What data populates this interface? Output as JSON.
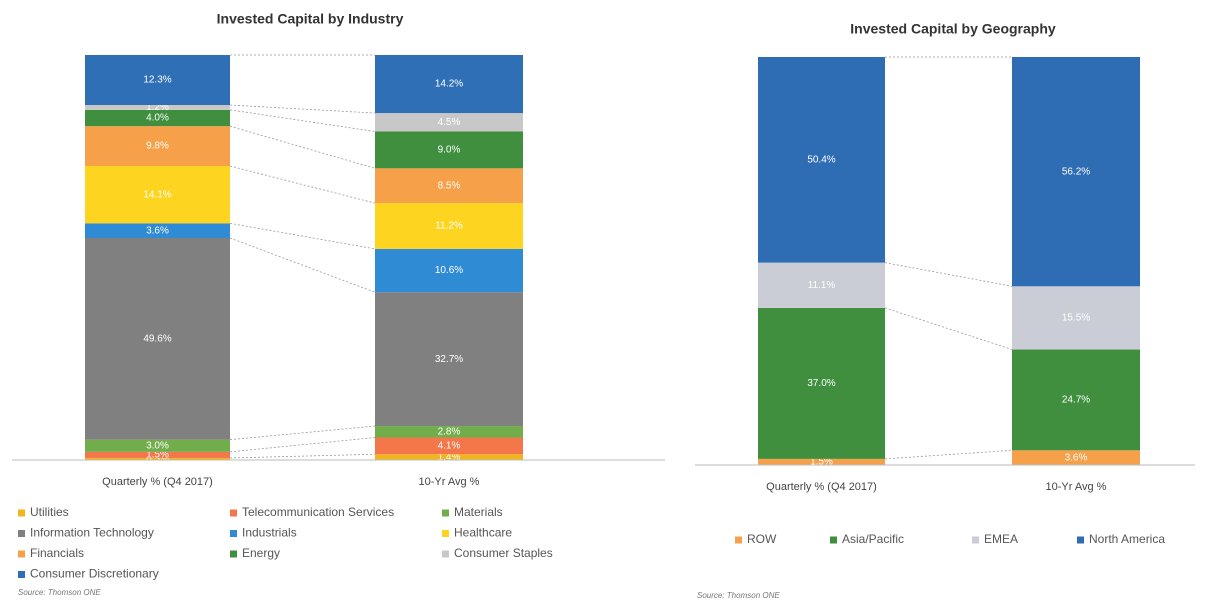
{
  "chart_data": [
    {
      "type": "bar",
      "stacked": true,
      "title": "Invested Capital by Industry",
      "categories": [
        "Quarterly % (Q4 2017)",
        "10-Yr Avg %"
      ],
      "series": [
        {
          "name": "Utilities",
          "color": "#f2b51c",
          "values": [
            0.5,
            1.4
          ],
          "value_labels": [
            "0.5%",
            "1.4%"
          ]
        },
        {
          "name": "Telecommunication Services",
          "color": "#f4774c",
          "values": [
            1.5,
            4.1
          ],
          "value_labels": [
            "1.5%",
            "4.1%"
          ]
        },
        {
          "name": "Materials",
          "color": "#72ad4c",
          "values": [
            3.0,
            2.8
          ],
          "value_labels": [
            "3.0%",
            "2.8%"
          ]
        },
        {
          "name": "Information Technology",
          "color": "#808080",
          "values": [
            49.6,
            32.7
          ],
          "value_labels": [
            "49.6%",
            "32.7%"
          ]
        },
        {
          "name": "Industrials",
          "color": "#2f8bd4",
          "values": [
            3.6,
            10.6
          ],
          "value_labels": [
            "3.6%",
            "10.6%"
          ]
        },
        {
          "name": "Healthcare",
          "color": "#fdd521",
          "values": [
            14.1,
            11.2
          ],
          "value_labels": [
            "14.1%",
            "11.2%"
          ]
        },
        {
          "name": "Financials",
          "color": "#f6a049",
          "values": [
            9.8,
            8.5
          ],
          "value_labels": [
            "9.8%",
            "8.5%"
          ]
        },
        {
          "name": "Energy",
          "color": "#3f8f3f",
          "values": [
            4.0,
            9.0
          ],
          "value_labels": [
            "4.0%",
            "9.0%"
          ]
        },
        {
          "name": "Consumer Staples",
          "color": "#c8c8c8",
          "values": [
            1.2,
            4.5
          ],
          "value_labels": [
            "1.2%",
            "4.5%"
          ]
        },
        {
          "name": "Consumer Discretionary",
          "color": "#2f6fb6",
          "values": [
            12.3,
            14.2
          ],
          "value_labels": [
            "12.3%",
            "14.2%"
          ]
        }
      ],
      "source": "Source: Thomson ONE"
    },
    {
      "type": "bar",
      "stacked": true,
      "title": "Invested Capital by Geography",
      "categories": [
        "Quarterly % (Q4 2017)",
        "10-Yr Avg %"
      ],
      "series": [
        {
          "name": "ROW",
          "color": "#f6a049",
          "values": [
            1.5,
            3.6
          ],
          "value_labels": [
            "1.5%",
            "3.6%"
          ]
        },
        {
          "name": "Asia/Pacific",
          "color": "#3f8f3f",
          "values": [
            37.0,
            24.7
          ],
          "value_labels": [
            "37.0%",
            "24.7%"
          ]
        },
        {
          "name": "EMEA",
          "color": "#cacdd6",
          "values": [
            11.1,
            15.5
          ],
          "value_labels": [
            "11.1%",
            "15.5%"
          ]
        },
        {
          "name": "North America",
          "color": "#2e6db4",
          "values": [
            50.4,
            56.2
          ],
          "value_labels": [
            "50.4%",
            "56.2%"
          ]
        }
      ],
      "source": "Source: Thomson ONE"
    }
  ]
}
